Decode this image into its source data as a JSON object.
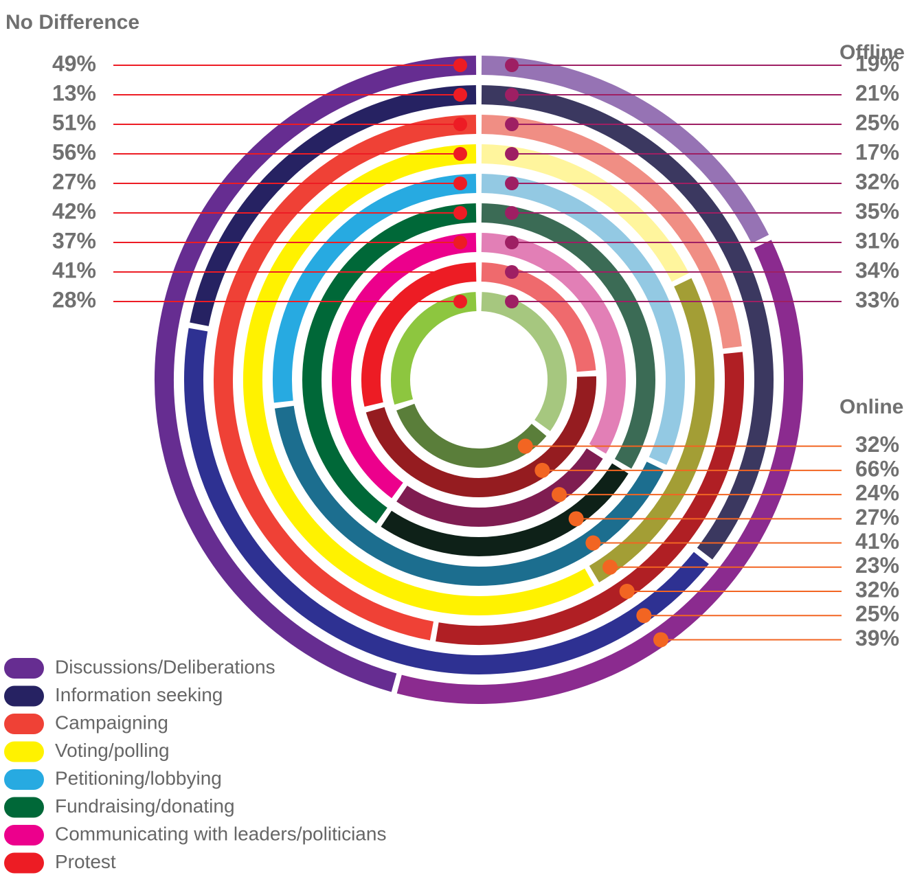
{
  "chart_data": {
    "type": "ring",
    "series": [
      {
        "name": "No Difference",
        "values": [
          49,
          13,
          51,
          56,
          27,
          42,
          37,
          41,
          28
        ],
        "colors": [
          "#662d91",
          "#262262",
          "#ef4136",
          "#fff200",
          "#27aae1",
          "#006838",
          "#ec008c",
          "#ed1c24",
          "#8dc63f"
        ],
        "label_color": "#ed1c24"
      },
      {
        "name": "Offline",
        "values": [
          19,
          21,
          25,
          17,
          32,
          35,
          31,
          34,
          33
        ],
        "colors": [
          "#9673b4",
          "#3b3860",
          "#f08e84",
          "#fff59d",
          "#93c9e3",
          "#3b6b55",
          "#e27fb6",
          "#ef6a6d",
          "#a6c77f"
        ],
        "label_color": "#9e1f63"
      },
      {
        "name": "Online",
        "values": [
          39,
          25,
          32,
          23,
          41,
          27,
          24,
          66,
          32
        ],
        "colors": [
          "#8b2b8f",
          "#2e3192",
          "#b01f24",
          "#a39e35",
          "#1c6e8f",
          "#0e2118",
          "#7f1d51",
          "#951c20",
          "#5a7e3a"
        ],
        "label_color": "#f26522"
      }
    ],
    "value_labels": [
      [
        "49%",
        "13%",
        "51%",
        "56%",
        "27%",
        "42%",
        "37%",
        "41%",
        "28%"
      ],
      [
        "19%",
        "21%",
        "25%",
        "17%",
        "32%",
        "35%",
        "31%",
        "34%",
        "33%"
      ],
      [
        "39%",
        "25%",
        "32%",
        "23%",
        "41%",
        "27%",
        "24%",
        "66%",
        "32%"
      ]
    ],
    "categories": [
      "Discussions/Deliberations",
      "Information seeking",
      "Campaigning",
      "Voting/polling",
      "Petitioning/lobbying",
      "Fundraising/donating",
      "Communicating with leaders/politicians",
      "Protest",
      null
    ]
  }
}
